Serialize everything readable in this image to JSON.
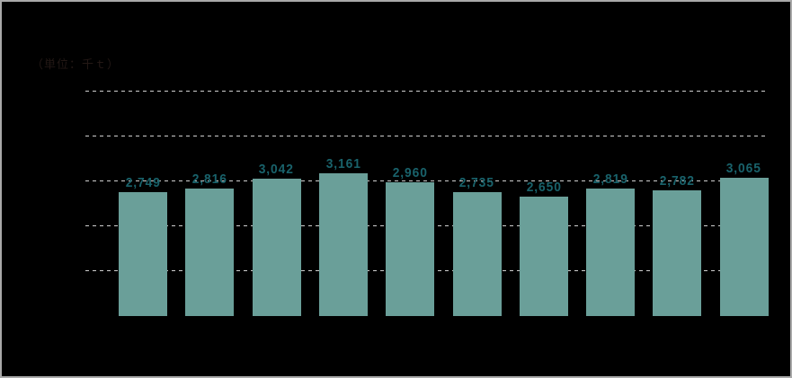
{
  "window": {
    "background_color": "#000000",
    "frame_border_color": "#A9A9A9"
  },
  "chart": {
    "unit_label": "（単位：千ｔ）",
    "colors": {
      "bar": "#6A9F99",
      "value_label": "#19626B",
      "gridline": "#CFCFCF",
      "unit_label_ink": "#231815",
      "background": "#000000"
    },
    "chart_data": {
      "type": "bar",
      "title": "",
      "xlabel": "",
      "ylabel": "",
      "unit": "千t",
      "values": [
        2749,
        2816,
        3042,
        3161,
        2960,
        2735,
        2650,
        2819,
        2782,
        3065
      ],
      "value_labels": [
        "2,749",
        "2,816",
        "3,042",
        "3,161",
        "2,960",
        "2,735",
        "2,650",
        "2,819",
        "2,782",
        "3,065"
      ],
      "x_tick_labels_visible": false,
      "y_tick_labels_visible": false,
      "ylim": [
        0,
        5050
      ],
      "gridlines": {
        "orientation": "horizontal",
        "style": "dashed",
        "count": 5,
        "interval_estimate": 1000
      },
      "legend": "none"
    }
  }
}
